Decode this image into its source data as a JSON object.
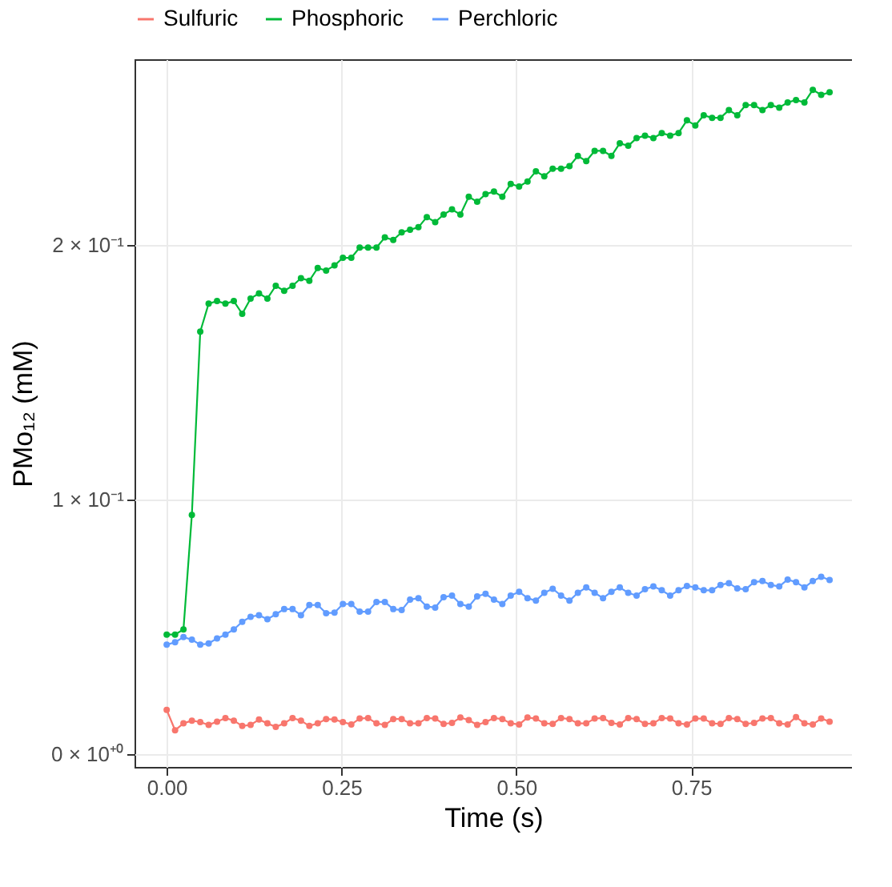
{
  "chart_data": {
    "type": "line",
    "xlabel": "Time (s)",
    "ylabel": "PMo₁₂ (mM)",
    "x": [
      0,
      0.012,
      0.024,
      0.036,
      0.048,
      0.06,
      0.072,
      0.084,
      0.096,
      0.108,
      0.12,
      0.132,
      0.144,
      0.156,
      0.168,
      0.18,
      0.192,
      0.204,
      0.216,
      0.228,
      0.24,
      0.252,
      0.264,
      0.276,
      0.288,
      0.3,
      0.312,
      0.324,
      0.336,
      0.348,
      0.36,
      0.372,
      0.384,
      0.396,
      0.408,
      0.42,
      0.432,
      0.444,
      0.456,
      0.468,
      0.48,
      0.492,
      0.504,
      0.516,
      0.528,
      0.54,
      0.552,
      0.564,
      0.576,
      0.588,
      0.6,
      0.612,
      0.624,
      0.636,
      0.648,
      0.66,
      0.672,
      0.684,
      0.696,
      0.708,
      0.72,
      0.732,
      0.744,
      0.756,
      0.768,
      0.78,
      0.792,
      0.804,
      0.816,
      0.828,
      0.84,
      0.852,
      0.864,
      0.876,
      0.888,
      0.9,
      0.912,
      0.924,
      0.936,
      0.948
    ],
    "series": [
      {
        "name": "Sulfuric",
        "color": "#f8766d",
        "values": [
          0.0174,
          0.0094,
          0.0121,
          0.0132,
          0.0126,
          0.0115,
          0.0128,
          0.0142,
          0.0132,
          0.0111,
          0.0115,
          0.0136,
          0.0121,
          0.0107,
          0.0121,
          0.0142,
          0.0132,
          0.0111,
          0.0121,
          0.0138,
          0.0136,
          0.0126,
          0.0117,
          0.014,
          0.0142,
          0.0121,
          0.0115,
          0.0138,
          0.0138,
          0.0121,
          0.0121,
          0.0142,
          0.014,
          0.0119,
          0.0123,
          0.0144,
          0.0134,
          0.0115,
          0.0126,
          0.0142,
          0.0138,
          0.0121,
          0.0117,
          0.0144,
          0.014,
          0.0121,
          0.0119,
          0.0142,
          0.0138,
          0.0121,
          0.0121,
          0.014,
          0.0142,
          0.0123,
          0.0117,
          0.0142,
          0.0138,
          0.0119,
          0.0121,
          0.0142,
          0.014,
          0.0121,
          0.0117,
          0.014,
          0.014,
          0.0121,
          0.0119,
          0.0142,
          0.0138,
          0.0119,
          0.0123,
          0.014,
          0.0142,
          0.0121,
          0.0117,
          0.0146,
          0.0121,
          0.0117,
          0.014,
          0.0128
        ]
      },
      {
        "name": "Phosphoric",
        "color": "#00ba38",
        "values": [
          0.047,
          0.047,
          0.049,
          0.094,
          0.166,
          0.177,
          0.178,
          0.177,
          0.178,
          0.173,
          0.179,
          0.181,
          0.179,
          0.184,
          0.182,
          0.184,
          0.187,
          0.186,
          0.191,
          0.19,
          0.192,
          0.195,
          0.195,
          0.199,
          0.199,
          0.199,
          0.203,
          0.202,
          0.205,
          0.206,
          0.207,
          0.211,
          0.209,
          0.212,
          0.214,
          0.212,
          0.219,
          0.217,
          0.22,
          0.221,
          0.219,
          0.224,
          0.223,
          0.225,
          0.229,
          0.227,
          0.23,
          0.23,
          0.231,
          0.235,
          0.233,
          0.237,
          0.237,
          0.235,
          0.24,
          0.239,
          0.242,
          0.243,
          0.242,
          0.244,
          0.243,
          0.244,
          0.249,
          0.247,
          0.251,
          0.25,
          0.25,
          0.253,
          0.251,
          0.255,
          0.255,
          0.253,
          0.255,
          0.254,
          0.256,
          0.257,
          0.256,
          0.261,
          0.259,
          0.26
        ]
      },
      {
        "name": "Perchloric",
        "color": "#619cff",
        "values": [
          0.043,
          0.044,
          0.046,
          0.045,
          0.043,
          0.0435,
          0.0455,
          0.047,
          0.049,
          0.052,
          0.054,
          0.0546,
          0.053,
          0.055,
          0.057,
          0.057,
          0.0546,
          0.0586,
          0.0586,
          0.0554,
          0.0556,
          0.059,
          0.059,
          0.056,
          0.056,
          0.0598,
          0.0598,
          0.057,
          0.0566,
          0.0607,
          0.0613,
          0.058,
          0.0576,
          0.0617,
          0.0623,
          0.059,
          0.058,
          0.062,
          0.063,
          0.0607,
          0.059,
          0.0623,
          0.0638,
          0.0613,
          0.0603,
          0.0634,
          0.065,
          0.0623,
          0.0603,
          0.0634,
          0.0655,
          0.0634,
          0.0613,
          0.0638,
          0.0655,
          0.0634,
          0.0623,
          0.0648,
          0.0659,
          0.0644,
          0.0623,
          0.0644,
          0.0661,
          0.0655,
          0.0644,
          0.0644,
          0.0665,
          0.0672,
          0.0651,
          0.0648,
          0.0676,
          0.068,
          0.0665,
          0.0659,
          0.0686,
          0.0676,
          0.0655,
          0.068,
          0.0697,
          0.0684
        ]
      }
    ],
    "xlim": [
      -0.046,
      0.98
    ],
    "xticks": [
      {
        "value": 0,
        "label": "0.00"
      },
      0.25,
      {
        "value": 0.5,
        "label": "0.50"
      },
      0.75
    ],
    "ylim": [
      -0.005,
      0.273
    ],
    "yticks": [
      {
        "value": 0,
        "label": "0 × 10⁺⁰"
      },
      {
        "value": 0.1,
        "label": "1 × 10⁻¹"
      },
      {
        "value": 0.2,
        "label": "2 × 10⁻¹"
      }
    ],
    "grid": true,
    "legend": "top",
    "marker": "circle",
    "line_style": "solid"
  }
}
